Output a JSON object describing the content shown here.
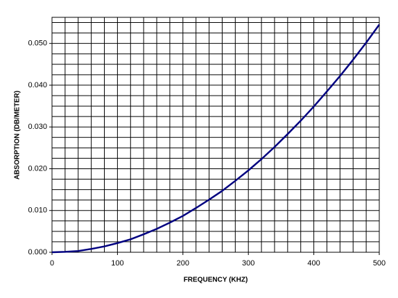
{
  "chart_data": {
    "type": "line",
    "x_label": "FREQUENCY (KHZ)",
    "y_label": "ABSORPTION (DB/METER)",
    "x": [
      0,
      20,
      40,
      60,
      80,
      100,
      120,
      140,
      160,
      180,
      200,
      220,
      240,
      260,
      280,
      300,
      320,
      340,
      360,
      380,
      400,
      420,
      440,
      460,
      480,
      500
    ],
    "series": [
      {
        "name": "Absorption",
        "color": "#000080",
        "values": [
          0,
          0.0001,
          0.0003,
          0.0008,
          0.0014,
          0.0022,
          0.0031,
          0.0043,
          0.0056,
          0.0071,
          0.0087,
          0.0106,
          0.0126,
          0.0147,
          0.0171,
          0.0196,
          0.0223,
          0.0252,
          0.0283,
          0.0315,
          0.0349,
          0.0385,
          0.0422,
          0.0461,
          0.0502,
          0.0545
        ]
      }
    ],
    "xlim": [
      0,
      500
    ],
    "xticks": [
      0,
      100,
      200,
      300,
      400,
      500
    ],
    "minor_xticks": [
      20,
      40,
      60,
      80,
      120,
      140,
      160,
      180,
      220,
      240,
      260,
      280,
      320,
      340,
      360,
      380,
      420,
      440,
      460,
      480
    ],
    "ylim": [
      0,
      0.05625
    ],
    "yticks": [
      {
        "value": 0,
        "label": "0.000"
      },
      {
        "value": 0.01,
        "label": "0.010"
      },
      {
        "value": 0.02,
        "label": "0.020"
      },
      {
        "value": 0.03,
        "label": "0.030"
      },
      {
        "value": 0.04,
        "label": "0.040"
      },
      {
        "value": 0.05,
        "label": "0.050"
      }
    ],
    "minor_yticks": [
      0.0025,
      0.005,
      0.0075,
      0.0125,
      0.015,
      0.0175,
      0.0225,
      0.025,
      0.0275,
      0.0325,
      0.035,
      0.0375,
      0.0425,
      0.045,
      0.0475,
      0.0525,
      0.055
    ],
    "grid": true
  }
}
